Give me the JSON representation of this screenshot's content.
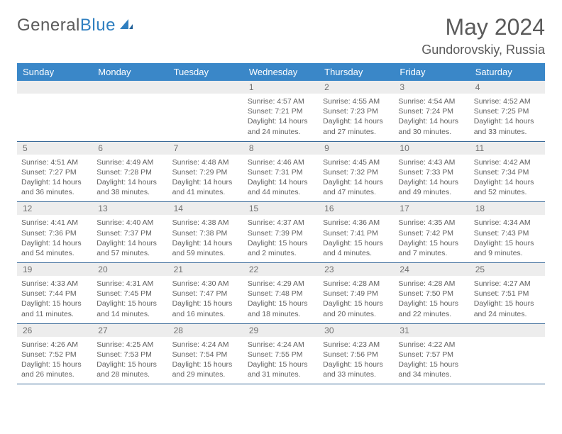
{
  "logo": {
    "text1": "General",
    "text2": "Blue"
  },
  "title": "May 2024",
  "location": "Gundorovskiy, Russia",
  "colors": {
    "header_bg": "#3a87c8",
    "header_text": "#ffffff",
    "daynum_bg": "#ededed",
    "text": "#606060",
    "rule": "#3a6a99"
  },
  "dayNames": [
    "Sunday",
    "Monday",
    "Tuesday",
    "Wednesday",
    "Thursday",
    "Friday",
    "Saturday"
  ],
  "weeks": [
    [
      {
        "n": "",
        "s": "",
        "ss": "",
        "d": ""
      },
      {
        "n": "",
        "s": "",
        "ss": "",
        "d": ""
      },
      {
        "n": "",
        "s": "",
        "ss": "",
        "d": ""
      },
      {
        "n": "1",
        "s": "Sunrise: 4:57 AM",
        "ss": "Sunset: 7:21 PM",
        "d": "Daylight: 14 hours and 24 minutes."
      },
      {
        "n": "2",
        "s": "Sunrise: 4:55 AM",
        "ss": "Sunset: 7:23 PM",
        "d": "Daylight: 14 hours and 27 minutes."
      },
      {
        "n": "3",
        "s": "Sunrise: 4:54 AM",
        "ss": "Sunset: 7:24 PM",
        "d": "Daylight: 14 hours and 30 minutes."
      },
      {
        "n": "4",
        "s": "Sunrise: 4:52 AM",
        "ss": "Sunset: 7:25 PM",
        "d": "Daylight: 14 hours and 33 minutes."
      }
    ],
    [
      {
        "n": "5",
        "s": "Sunrise: 4:51 AM",
        "ss": "Sunset: 7:27 PM",
        "d": "Daylight: 14 hours and 36 minutes."
      },
      {
        "n": "6",
        "s": "Sunrise: 4:49 AM",
        "ss": "Sunset: 7:28 PM",
        "d": "Daylight: 14 hours and 38 minutes."
      },
      {
        "n": "7",
        "s": "Sunrise: 4:48 AM",
        "ss": "Sunset: 7:29 PM",
        "d": "Daylight: 14 hours and 41 minutes."
      },
      {
        "n": "8",
        "s": "Sunrise: 4:46 AM",
        "ss": "Sunset: 7:31 PM",
        "d": "Daylight: 14 hours and 44 minutes."
      },
      {
        "n": "9",
        "s": "Sunrise: 4:45 AM",
        "ss": "Sunset: 7:32 PM",
        "d": "Daylight: 14 hours and 47 minutes."
      },
      {
        "n": "10",
        "s": "Sunrise: 4:43 AM",
        "ss": "Sunset: 7:33 PM",
        "d": "Daylight: 14 hours and 49 minutes."
      },
      {
        "n": "11",
        "s": "Sunrise: 4:42 AM",
        "ss": "Sunset: 7:34 PM",
        "d": "Daylight: 14 hours and 52 minutes."
      }
    ],
    [
      {
        "n": "12",
        "s": "Sunrise: 4:41 AM",
        "ss": "Sunset: 7:36 PM",
        "d": "Daylight: 14 hours and 54 minutes."
      },
      {
        "n": "13",
        "s": "Sunrise: 4:40 AM",
        "ss": "Sunset: 7:37 PM",
        "d": "Daylight: 14 hours and 57 minutes."
      },
      {
        "n": "14",
        "s": "Sunrise: 4:38 AM",
        "ss": "Sunset: 7:38 PM",
        "d": "Daylight: 14 hours and 59 minutes."
      },
      {
        "n": "15",
        "s": "Sunrise: 4:37 AM",
        "ss": "Sunset: 7:39 PM",
        "d": "Daylight: 15 hours and 2 minutes."
      },
      {
        "n": "16",
        "s": "Sunrise: 4:36 AM",
        "ss": "Sunset: 7:41 PM",
        "d": "Daylight: 15 hours and 4 minutes."
      },
      {
        "n": "17",
        "s": "Sunrise: 4:35 AM",
        "ss": "Sunset: 7:42 PM",
        "d": "Daylight: 15 hours and 7 minutes."
      },
      {
        "n": "18",
        "s": "Sunrise: 4:34 AM",
        "ss": "Sunset: 7:43 PM",
        "d": "Daylight: 15 hours and 9 minutes."
      }
    ],
    [
      {
        "n": "19",
        "s": "Sunrise: 4:33 AM",
        "ss": "Sunset: 7:44 PM",
        "d": "Daylight: 15 hours and 11 minutes."
      },
      {
        "n": "20",
        "s": "Sunrise: 4:31 AM",
        "ss": "Sunset: 7:45 PM",
        "d": "Daylight: 15 hours and 14 minutes."
      },
      {
        "n": "21",
        "s": "Sunrise: 4:30 AM",
        "ss": "Sunset: 7:47 PM",
        "d": "Daylight: 15 hours and 16 minutes."
      },
      {
        "n": "22",
        "s": "Sunrise: 4:29 AM",
        "ss": "Sunset: 7:48 PM",
        "d": "Daylight: 15 hours and 18 minutes."
      },
      {
        "n": "23",
        "s": "Sunrise: 4:28 AM",
        "ss": "Sunset: 7:49 PM",
        "d": "Daylight: 15 hours and 20 minutes."
      },
      {
        "n": "24",
        "s": "Sunrise: 4:28 AM",
        "ss": "Sunset: 7:50 PM",
        "d": "Daylight: 15 hours and 22 minutes."
      },
      {
        "n": "25",
        "s": "Sunrise: 4:27 AM",
        "ss": "Sunset: 7:51 PM",
        "d": "Daylight: 15 hours and 24 minutes."
      }
    ],
    [
      {
        "n": "26",
        "s": "Sunrise: 4:26 AM",
        "ss": "Sunset: 7:52 PM",
        "d": "Daylight: 15 hours and 26 minutes."
      },
      {
        "n": "27",
        "s": "Sunrise: 4:25 AM",
        "ss": "Sunset: 7:53 PM",
        "d": "Daylight: 15 hours and 28 minutes."
      },
      {
        "n": "28",
        "s": "Sunrise: 4:24 AM",
        "ss": "Sunset: 7:54 PM",
        "d": "Daylight: 15 hours and 29 minutes."
      },
      {
        "n": "29",
        "s": "Sunrise: 4:24 AM",
        "ss": "Sunset: 7:55 PM",
        "d": "Daylight: 15 hours and 31 minutes."
      },
      {
        "n": "30",
        "s": "Sunrise: 4:23 AM",
        "ss": "Sunset: 7:56 PM",
        "d": "Daylight: 15 hours and 33 minutes."
      },
      {
        "n": "31",
        "s": "Sunrise: 4:22 AM",
        "ss": "Sunset: 7:57 PM",
        "d": "Daylight: 15 hours and 34 minutes."
      },
      {
        "n": "",
        "s": "",
        "ss": "",
        "d": ""
      }
    ]
  ]
}
